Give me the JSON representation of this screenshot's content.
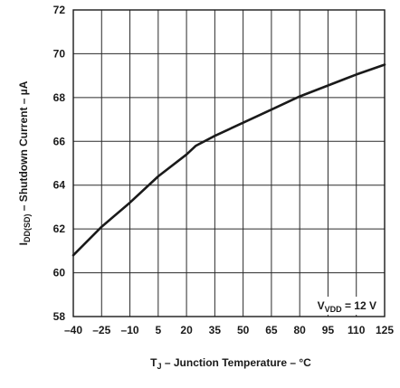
{
  "chart_data": {
    "type": "line",
    "xlabel_main": "T",
    "xlabel_sub": "J",
    "xlabel_rest": " – Junction Temperature – °C",
    "ylabel_main": "I",
    "ylabel_sub": "DD(SD)",
    "ylabel_rest": " – Shutdown Current – µA",
    "xlim": [
      -40,
      125
    ],
    "ylim": [
      58,
      72
    ],
    "x_ticks": [
      -40,
      -25,
      -10,
      5,
      20,
      35,
      50,
      65,
      80,
      95,
      110,
      125
    ],
    "x_tick_labels": [
      "–40",
      "–25",
      "–10",
      "5",
      "20",
      "35",
      "50",
      "65",
      "80",
      "95",
      "110",
      "125"
    ],
    "y_ticks": [
      58,
      60,
      62,
      64,
      66,
      68,
      70,
      72
    ],
    "y_tick_labels": [
      "58",
      "60",
      "62",
      "64",
      "66",
      "68",
      "70",
      "72"
    ],
    "grid": true,
    "annotation_main": "V",
    "annotation_sub": "VDD",
    "annotation_rest": " = 12 V",
    "annotation_position": "bottom-right",
    "series": [
      {
        "x": [
          -40,
          -25,
          -10,
          5,
          20,
          25,
          35,
          50,
          65,
          80,
          95,
          110,
          125
        ],
        "y": [
          60.8,
          62.1,
          63.2,
          64.4,
          65.4,
          65.8,
          66.25,
          66.85,
          67.45,
          68.05,
          68.55,
          69.05,
          69.5
        ]
      }
    ],
    "line_color": "#1a1a1a"
  }
}
